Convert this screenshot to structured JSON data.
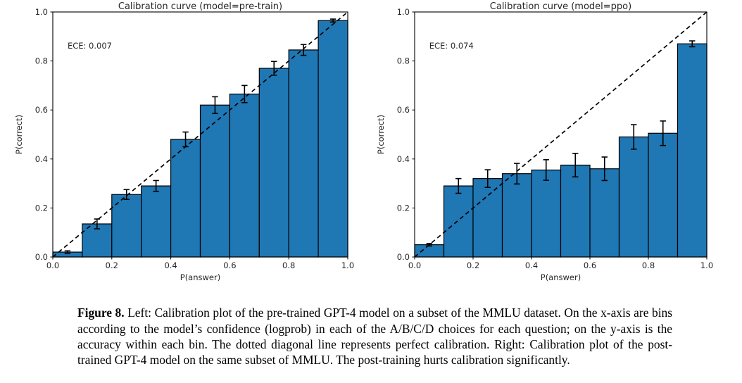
{
  "figure_caption": {
    "label": "Figure 8.",
    "text": "Left: Calibration plot of the pre-trained GPT-4 model on a subset of the MMLU dataset. On the x-axis are bins according to the model’s confidence (logprob) in each of the A/B/C/D choices for each question; on the y-axis is the accuracy within each bin. The dotted diagonal line represents perfect calibration. Right: Calibration plot of the post-trained GPT-4 model on the same subset of MMLU. The post-training hurts calibration significantly."
  },
  "chart_data": [
    {
      "type": "bar",
      "title": "Calibration curve (model=pre-train)",
      "annotation": "ECE: 0.007",
      "annotation_pos": {
        "x": 0.05,
        "y": 0.85
      },
      "xlabel": "P(answer)",
      "ylabel": "P(correct)",
      "xlim": [
        0.0,
        1.0
      ],
      "ylim": [
        0.0,
        1.0
      ],
      "xticks": [
        0.0,
        0.2,
        0.4,
        0.6,
        0.8,
        1.0
      ],
      "yticks": [
        0.0,
        0.2,
        0.4,
        0.6,
        0.8,
        1.0
      ],
      "grid": false,
      "legend": "none",
      "diagonal_line": "y=x dashed (perfect calibration)",
      "bin_edges": [
        0.0,
        0.1,
        0.2,
        0.3,
        0.4,
        0.5,
        0.6,
        0.7,
        0.8,
        0.9,
        1.0
      ],
      "values": [
        0.02,
        0.135,
        0.255,
        0.29,
        0.48,
        0.62,
        0.665,
        0.77,
        0.845,
        0.965
      ],
      "errors": [
        0.005,
        0.02,
        0.02,
        0.022,
        0.03,
        0.034,
        0.035,
        0.028,
        0.022,
        0.006
      ],
      "colors": {
        "bar_fill": "#1f77b4",
        "bar_edge": "#000000",
        "line": "#000000",
        "text": "#262626"
      }
    },
    {
      "type": "bar",
      "title": "Calibration curve (model=ppo)",
      "annotation": "ECE: 0.074",
      "annotation_pos": {
        "x": 0.05,
        "y": 0.85
      },
      "xlabel": "P(answer)",
      "ylabel": "P(correct)",
      "xlim": [
        0.0,
        1.0
      ],
      "ylim": [
        0.0,
        1.0
      ],
      "xticks": [
        0.0,
        0.2,
        0.4,
        0.6,
        0.8,
        1.0
      ],
      "yticks": [
        0.0,
        0.2,
        0.4,
        0.6,
        0.8,
        1.0
      ],
      "grid": false,
      "legend": "none",
      "diagonal_line": "y=x dashed (perfect calibration)",
      "bin_edges": [
        0.0,
        0.1,
        0.2,
        0.3,
        0.4,
        0.5,
        0.6,
        0.7,
        0.8,
        0.9,
        1.0
      ],
      "values": [
        0.05,
        0.29,
        0.32,
        0.34,
        0.355,
        0.375,
        0.36,
        0.49,
        0.505,
        0.87
      ],
      "errors": [
        0.005,
        0.03,
        0.036,
        0.042,
        0.042,
        0.048,
        0.048,
        0.05,
        0.05,
        0.012
      ],
      "colors": {
        "bar_fill": "#1f77b4",
        "bar_edge": "#000000",
        "line": "#000000",
        "text": "#262626"
      }
    }
  ]
}
